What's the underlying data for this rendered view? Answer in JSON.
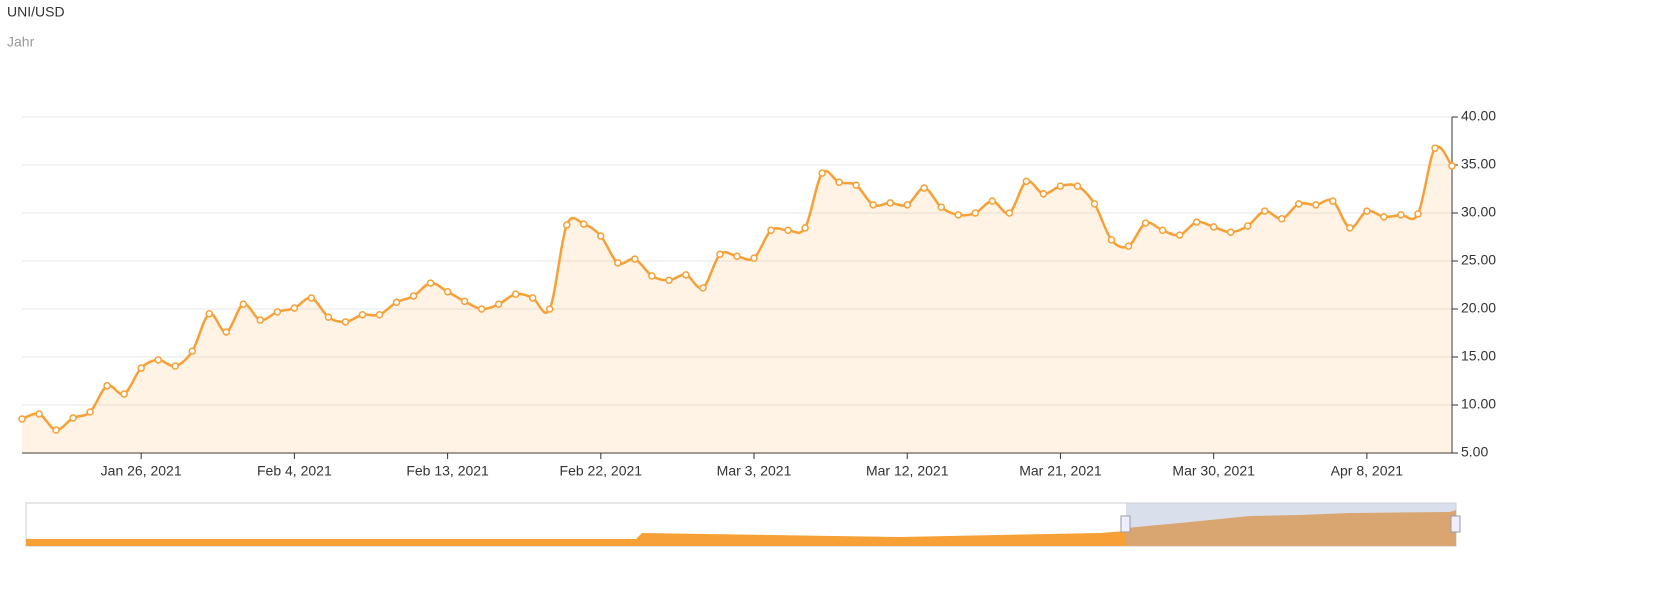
{
  "chart_data": {
    "type": "line",
    "title": "UNI/USD",
    "subtitle": "Jahr",
    "x": [
      "2021-01-19",
      "2021-01-20",
      "2021-01-21",
      "2021-01-22",
      "2021-01-23",
      "2021-01-24",
      "2021-01-25",
      "2021-01-26",
      "2021-01-27",
      "2021-01-28",
      "2021-01-29",
      "2021-01-30",
      "2021-01-31",
      "2021-02-01",
      "2021-02-02",
      "2021-02-03",
      "2021-02-04",
      "2021-02-05",
      "2021-02-06",
      "2021-02-07",
      "2021-02-08",
      "2021-02-09",
      "2021-02-10",
      "2021-02-11",
      "2021-02-12",
      "2021-02-13",
      "2021-02-14",
      "2021-02-15",
      "2021-02-16",
      "2021-02-17",
      "2021-02-18",
      "2021-02-19",
      "2021-02-20",
      "2021-02-21",
      "2021-02-22",
      "2021-02-23",
      "2021-02-24",
      "2021-02-25",
      "2021-02-26",
      "2021-02-27",
      "2021-02-28",
      "2021-03-01",
      "2021-03-02",
      "2021-03-03",
      "2021-03-04",
      "2021-03-05",
      "2021-03-06",
      "2021-03-07",
      "2021-03-08",
      "2021-03-09",
      "2021-03-10",
      "2021-03-11",
      "2021-03-12",
      "2021-03-13",
      "2021-03-14",
      "2021-03-15",
      "2021-03-16",
      "2021-03-17",
      "2021-03-18",
      "2021-03-19",
      "2021-03-20",
      "2021-03-21",
      "2021-03-22",
      "2021-03-23",
      "2021-03-24",
      "2021-03-25",
      "2021-03-26",
      "2021-03-27",
      "2021-03-28",
      "2021-03-29",
      "2021-03-30",
      "2021-03-31",
      "2021-04-01",
      "2021-04-02",
      "2021-04-03",
      "2021-04-04",
      "2021-04-05",
      "2021-04-06",
      "2021-04-07",
      "2021-04-08",
      "2021-04-09",
      "2021-04-10",
      "2021-04-11",
      "2021-04-12",
      "2021-04-13"
    ],
    "series": [
      {
        "name": "UNI/USD",
        "color": "#f7a035",
        "values": [
          8.54,
          9.06,
          7.4,
          8.65,
          9.27,
          12.0,
          11.15,
          13.85,
          14.7,
          14.06,
          15.6,
          19.5,
          17.6,
          20.5,
          18.85,
          19.7,
          20.1,
          21.15,
          19.15,
          18.65,
          19.4,
          19.4,
          20.7,
          21.35,
          22.7,
          21.8,
          20.8,
          20.0,
          20.5,
          21.55,
          21.15,
          20.0,
          28.75,
          28.85,
          27.6,
          24.8,
          25.2,
          23.45,
          23.0,
          23.55,
          22.2,
          25.7,
          25.5,
          25.3,
          28.2,
          28.2,
          28.45,
          34.15,
          33.2,
          32.9,
          30.85,
          31.05,
          30.85,
          32.6,
          30.6,
          29.8,
          30.0,
          31.25,
          30.0,
          33.3,
          32.0,
          32.8,
          32.8,
          30.95,
          27.2,
          26.55,
          28.95,
          28.2,
          27.7,
          29.05,
          28.55,
          28.0,
          28.65,
          30.2,
          29.4,
          30.95,
          30.85,
          31.25,
          28.45,
          30.2,
          29.6,
          29.8,
          29.9,
          36.75,
          34.9
        ]
      }
    ],
    "xlim": [
      "2021-01-19",
      "2021-04-13"
    ],
    "xticks": [
      {
        "value": "2021-01-26",
        "label": "Jan 26, 2021"
      },
      {
        "value": "2021-02-04",
        "label": "Feb 4, 2021"
      },
      {
        "value": "2021-02-13",
        "label": "Feb 13, 2021"
      },
      {
        "value": "2021-02-22",
        "label": "Feb 22, 2021"
      },
      {
        "value": "2021-03-03",
        "label": "Mar 3, 2021"
      },
      {
        "value": "2021-03-12",
        "label": "Mar 12, 2021"
      },
      {
        "value": "2021-03-21",
        "label": "Mar 21, 2021"
      },
      {
        "value": "2021-03-30",
        "label": "Mar 30, 2021"
      },
      {
        "value": "2021-04-08",
        "label": "Apr 8, 2021"
      }
    ],
    "ylim": [
      5,
      40
    ],
    "yticks": [
      {
        "value": 5,
        "label": "5.00"
      },
      {
        "value": 10,
        "label": "10.00"
      },
      {
        "value": 15,
        "label": "15.00"
      },
      {
        "value": 20,
        "label": "20.00"
      },
      {
        "value": 25,
        "label": "25.00"
      },
      {
        "value": 30,
        "label": "30.00"
      },
      {
        "value": 35,
        "label": "35.00"
      },
      {
        "value": 40,
        "label": "40.00"
      }
    ],
    "grid": true
  }
}
